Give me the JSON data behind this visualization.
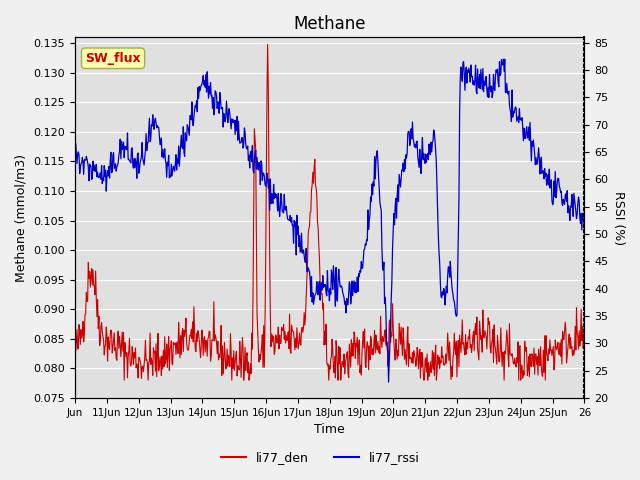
{
  "title": "Methane",
  "ylabel_left": "Methane (mmol/m3)",
  "ylabel_right": "RSSI (%)",
  "xlabel": "Time",
  "ylim_left": [
    0.075,
    0.136
  ],
  "ylim_right": [
    20,
    86
  ],
  "yticks_left": [
    0.075,
    0.08,
    0.085,
    0.09,
    0.095,
    0.1,
    0.105,
    0.11,
    0.115,
    0.12,
    0.125,
    0.13,
    0.135
  ],
  "yticks_right": [
    20,
    25,
    30,
    35,
    40,
    45,
    50,
    55,
    60,
    65,
    70,
    75,
    80,
    85
  ],
  "xtick_positions": [
    0,
    1,
    2,
    3,
    4,
    5,
    6,
    7,
    8,
    9,
    10,
    11,
    12,
    13,
    14,
    15,
    16
  ],
  "xtick_labels": [
    "Jun",
    "11Jun",
    "12Jun",
    "13Jun",
    "14Jun",
    "15Jun",
    "16Jun",
    "17Jun",
    "18Jun",
    "19Jun",
    "20Jun",
    "21Jun",
    "22Jun",
    "23Jun",
    "24Jun",
    "25Jun",
    "26"
  ],
  "line1_color": "#cc0000",
  "line2_color": "#0000cc",
  "legend_labels": [
    "li77_den",
    "li77_rssi"
  ],
  "sw_flux_box_color": "#ffffaa",
  "sw_flux_text_color": "#cc0000",
  "bg_color": "#e0e0e0",
  "grid_color": "#ffffff",
  "fig_bg_color": "#f0f0f0"
}
